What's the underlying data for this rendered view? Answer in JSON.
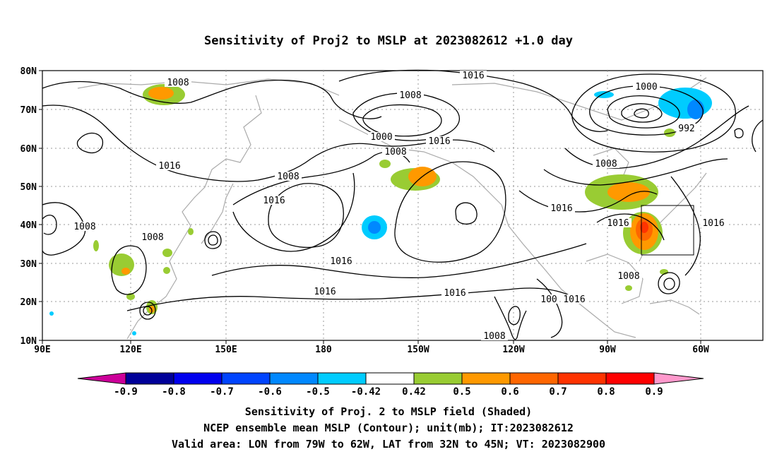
{
  "title": "Sensitivity of Proj2 to MSLP at 2023082612 +1.0 day",
  "axes": {
    "lat_labels": [
      "80N",
      "70N",
      "60N",
      "50N",
      "40N",
      "30N",
      "20N",
      "10N"
    ],
    "lon_labels": [
      "90E",
      "120E",
      "150E",
      "180",
      "150W",
      "120W",
      "90W",
      "60W"
    ]
  },
  "contour_labels": [
    {
      "text": "1008",
      "near": "NE Asia 75N"
    },
    {
      "text": "1016",
      "near": "N Pacific 78N"
    },
    {
      "text": "1008",
      "near": "Bering 71N"
    },
    {
      "text": "1000",
      "near": "Canada low 73N"
    },
    {
      "text": "992",
      "near": "Greenland low 63N"
    },
    {
      "text": "1000",
      "near": "Alaska low 62N"
    },
    {
      "text": "1008",
      "near": "Gulf of Alaska 58N"
    },
    {
      "text": "1016",
      "near": "NE Pacific 58N"
    },
    {
      "text": "1016",
      "near": "Siberia 54N"
    },
    {
      "text": "1008",
      "near": "Kamchatka 52N"
    },
    {
      "text": "1008",
      "near": "Hudson Bay 55N"
    },
    {
      "text": "1016",
      "near": "NW Pacific 47N"
    },
    {
      "text": "1016",
      "near": "Central US 44N"
    },
    {
      "text": "1008",
      "near": "China 40N"
    },
    {
      "text": "1016",
      "near": "Great Lakes 40N"
    },
    {
      "text": "1016",
      "near": "W Atlantic 40N"
    },
    {
      "text": "1008",
      "near": "E China 33N"
    },
    {
      "text": "1016",
      "near": "Subtropical Pacific 30N"
    },
    {
      "text": "1008",
      "near": "Florida 27N"
    },
    {
      "text": "1016",
      "near": "Pacific 22N"
    },
    {
      "text": "1016",
      "near": "E Pacific 22N"
    },
    {
      "text": "100",
      "near": "Mexico 20N"
    },
    {
      "text": "1016",
      "near": "Gulf 20N"
    },
    {
      "text": "1008",
      "near": "E Pacific 11N"
    }
  ],
  "sensitivity_regions": [
    {
      "sign": "positive",
      "max": 0.6,
      "location": "Siberia 74N 128E"
    },
    {
      "sign": "positive",
      "max": 0.6,
      "location": "N Pacific 49N 151W"
    },
    {
      "sign": "positive",
      "max": 0.5,
      "location": "Aleutians 56N 164W"
    },
    {
      "sign": "negative",
      "min": -0.5,
      "location": "Subtropical Pacific 39N 163W"
    },
    {
      "sign": "positive",
      "max": 0.8,
      "location": "US East Coast 38N 77W"
    },
    {
      "sign": "positive",
      "max": 0.7,
      "location": "Great Lakes 48N 88W"
    },
    {
      "sign": "negative",
      "min": -0.5,
      "location": "Labrador Sea 68N 68W"
    },
    {
      "sign": "negative",
      "min": -0.5,
      "location": "Baffin 72N 95W"
    },
    {
      "sign": "positive",
      "max": 0.6,
      "location": "E China 30N 120E"
    }
  ],
  "valid_area_box": {
    "lon_min": -79,
    "lon_max": -62,
    "lat_min": 32,
    "lat_max": 45
  },
  "colorbar": {
    "labels": [
      "-0.9",
      "-0.8",
      "-0.7",
      "-0.6",
      "-0.5",
      "-0.42",
      "0.42",
      "0.5",
      "0.6",
      "0.7",
      "0.8",
      "0.9"
    ],
    "colors": [
      "#000099",
      "#0000ee",
      "#0044ff",
      "#0088ff",
      "#00ccff",
      "#ffffff",
      "#99cc33",
      "#ff9900",
      "#ff6600",
      "#ff3300",
      "#ff0000"
    ],
    "low_arrow_color": "#cc0099",
    "high_arrow_color": "#ff99cc"
  },
  "captions": {
    "line1": "Sensitivity of Proj. 2 to MSLP field (Shaded)",
    "line2": "NCEP ensemble mean MSLP (Contour); unit(mb); IT:2023082612",
    "line3": "Valid area: LON from 79W to 62W, LAT from 32N to 45N; VT: 2023082900"
  }
}
